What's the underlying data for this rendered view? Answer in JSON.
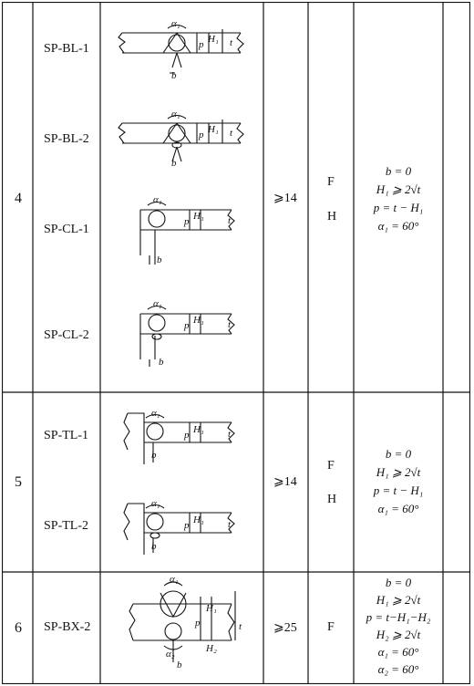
{
  "rows": [
    {
      "no": "4",
      "codes": [
        "SP-BL-1",
        "SP-BL-2",
        "SP-CL-1",
        "SP-CL-2"
      ],
      "thickness": "⩾14",
      "positions": [
        "F",
        "H"
      ],
      "formulas": [
        "b = 0",
        "H₁ ⩾ 2√t",
        "p = t − H₁",
        "α₁ = 60°"
      ]
    },
    {
      "no": "5",
      "codes": [
        "SP-TL-1",
        "SP-TL-2"
      ],
      "thickness": "⩾14",
      "positions": [
        "F",
        "H"
      ],
      "formulas": [
        "b = 0",
        "H₁ ⩾ 2√t",
        "p = t − H₁",
        "α₁ = 60°"
      ]
    },
    {
      "no": "6",
      "codes": [
        "SP-BX-2"
      ],
      "thickness": "⩾25",
      "positions": [
        "F"
      ],
      "formulas": [
        "b = 0",
        "H₁ ⩾ 2√t",
        "p = t−H₁−H₂",
        "H₂ ⩾ 2√t",
        "α₁ = 60°",
        "α₂ = 60°"
      ]
    }
  ],
  "labels": {
    "alpha1": "α₁",
    "alpha2": "α₂",
    "p": "p",
    "H1": "H₁",
    "H2": "H₂",
    "t": "t",
    "b": "b"
  }
}
